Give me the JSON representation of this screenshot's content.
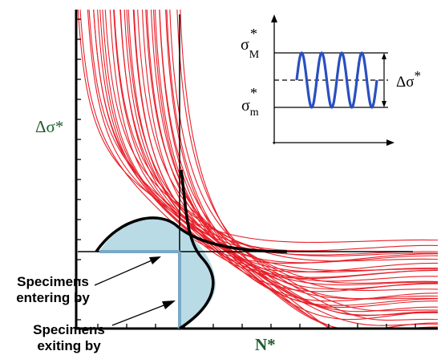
{
  "axes": {
    "y_label": "Δσ*",
    "x_label": "N*"
  },
  "inset": {
    "upper_label": "σ*M",
    "lower_label": "σ*m",
    "range_label": "Δσ*",
    "wave_cycles": 4
  },
  "annotations": {
    "entering": [
      "Specimens",
      "entering by"
    ],
    "exiting": [
      "Specimens",
      "exiting by"
    ]
  },
  "colors": {
    "curves": "#e8202a",
    "boundary": "#000000",
    "shaded_region": "#b9dbe6",
    "shaded_edges": "#7aa8c8",
    "wave": "#2a4fc0",
    "axis_label": "#1b5e2b"
  },
  "curve_family": {
    "count": 34
  }
}
